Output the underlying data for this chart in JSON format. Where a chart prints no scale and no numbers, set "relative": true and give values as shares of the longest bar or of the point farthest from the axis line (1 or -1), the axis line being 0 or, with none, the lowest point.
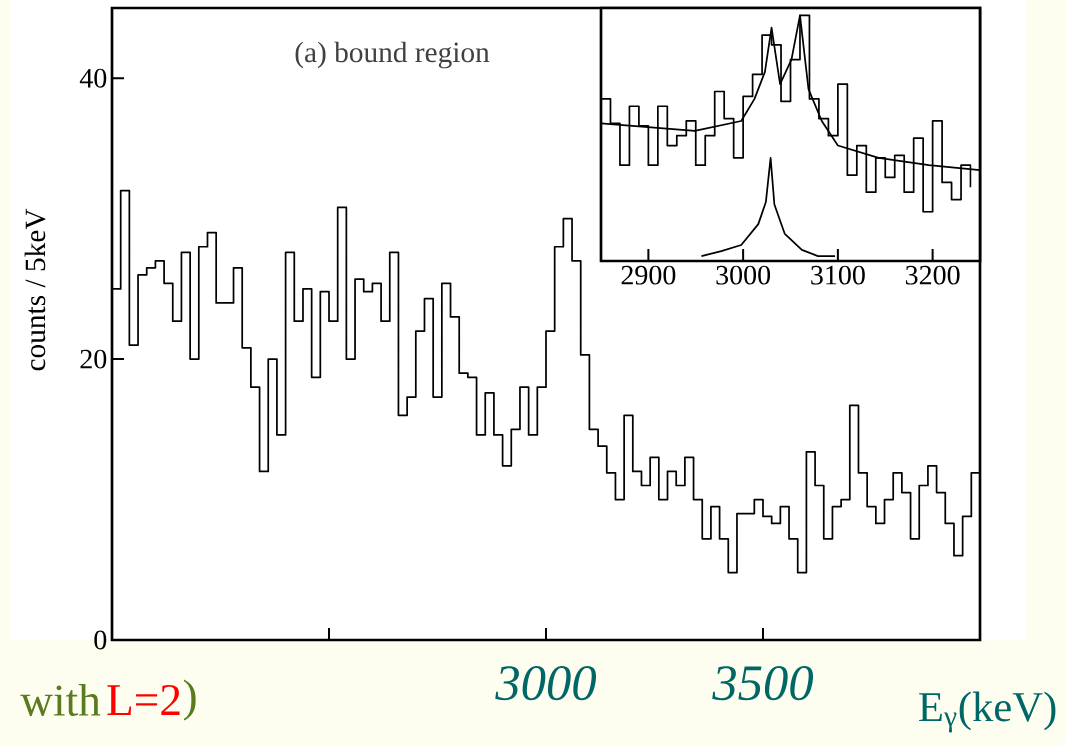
{
  "chart_data": [
    {
      "type": "histogram",
      "xlabel": "E$_{γ}$(keV)",
      "ylabel": "counts / 5keV",
      "color": "#000000",
      "annotations": [
        "(a) bound region",
        "with",
        "L=2",
        ")"
      ],
      "bins": [
        2000,
        2020,
        2040,
        2060,
        2080,
        2100,
        2120,
        2140,
        2160,
        2180,
        2200,
        2220,
        2240,
        2260,
        2280,
        2300,
        2320,
        2340,
        2360,
        2380,
        2400,
        2420,
        2440,
        2460,
        2480,
        2500,
        2520,
        2540,
        2560,
        2580,
        2600,
        2620,
        2640,
        2660,
        2680,
        2700,
        2720,
        2740,
        2760,
        2780,
        2800,
        2820,
        2840,
        2860,
        2880,
        2900,
        2920,
        2940,
        2960,
        2980,
        3000,
        3020,
        3040,
        3060,
        3080,
        3100,
        3120,
        3140,
        3160,
        3180,
        3200,
        3220,
        3240,
        3260,
        3280,
        3300,
        3320,
        3340,
        3360,
        3380,
        3400,
        3420,
        3440,
        3460,
        3480,
        3500,
        3520,
        3540,
        3560,
        3580,
        3600,
        3620,
        3640,
        3660,
        3680,
        3700,
        3720,
        3740,
        3760,
        3780,
        3800,
        3820,
        3840,
        3860,
        3880,
        3900,
        3920,
        3940,
        3960,
        3980,
        4000
      ],
      "values": [
        25,
        32,
        21,
        26,
        26.5,
        27,
        25.4,
        22.7,
        27.6,
        20,
        28,
        29,
        24,
        24,
        26.5,
        20.8,
        18,
        12,
        20,
        14.6,
        27.6,
        22.7,
        25,
        18.7,
        24.8,
        22.7,
        30.8,
        20,
        25.7,
        24.8,
        25.4,
        22.7,
        27.6,
        16,
        17.3,
        22,
        24.3,
        17.3,
        25.4,
        23,
        19,
        18.7,
        14.6,
        17.6,
        14.6,
        12.4,
        15,
        18,
        14.6,
        18,
        22,
        28,
        30,
        27,
        20.3,
        15,
        13.8,
        11.9,
        10,
        16,
        12,
        11,
        13,
        10,
        12,
        11,
        13,
        10,
        7.2,
        9.5,
        7.2,
        4.8,
        9,
        9,
        10,
        8.8,
        8.3,
        9.5,
        7.2,
        4.8,
        13.4,
        11,
        7.2,
        9.5,
        10,
        16.7,
        11.9,
        9.5,
        8.3,
        10,
        11.9,
        10.5,
        7.2,
        11,
        12.4,
        10.5,
        8.3,
        6,
        8.8,
        11.9
      ],
      "xlim": [
        2000,
        4000
      ],
      "ylim": [
        0,
        45
      ],
      "xticks": [
        {
          "value": 2500,
          "label": null
        },
        3000,
        3500
      ],
      "yticks": [
        0,
        20,
        40
      ]
    },
    {
      "type": "line",
      "relative": true,
      "tick_labels": "x",
      "series": [
        {
          "type": "step",
          "color": "#000000",
          "x": [
            2850,
            2860,
            2870,
            2880,
            2890,
            2900,
            2910,
            2920,
            2930,
            2940,
            2950,
            2960,
            2970,
            2980,
            2990,
            3000,
            3010,
            3020,
            3030,
            3040,
            3050,
            3060,
            3070,
            3080,
            3090,
            3100,
            3110,
            3120,
            3130,
            3140,
            3150,
            3160,
            3170,
            3180,
            3190,
            3200,
            3210,
            3220,
            3230,
            3240
          ],
          "values": [
            0.66,
            0.56,
            0.39,
            0.63,
            0.55,
            0.39,
            0.63,
            0.47,
            0.51,
            0.57,
            0.39,
            0.51,
            0.69,
            0.58,
            0.42,
            0.67,
            0.76,
            0.92,
            0.88,
            0.65,
            0.82,
            1.0,
            0.66,
            0.58,
            0.51,
            0.72,
            0.35,
            0.47,
            0.28,
            0.42,
            0.34,
            0.43,
            0.28,
            0.5,
            0.2,
            0.57,
            0.32,
            0.25,
            0.39,
            0.3
          ]
        },
        {
          "type": "line",
          "color": "#000000",
          "x": [
            2850,
            2949,
            2998,
            3012,
            3023,
            3030,
            3039,
            3051,
            3060,
            3069,
            3083,
            3100,
            3143,
            3196,
            3250
          ],
          "values": [
            0.56,
            0.53,
            0.57,
            0.66,
            0.77,
            0.95,
            0.72,
            0.82,
            1.0,
            0.7,
            0.57,
            0.47,
            0.42,
            0.39,
            0.37
          ]
        },
        {
          "type": "line",
          "color": "#000000",
          "x": [
            2956,
            2977,
            2998,
            3016,
            3024,
            3029,
            3033,
            3044,
            3062,
            3079,
            3097
          ],
          "values": [
            0.02,
            0.04,
            0.065,
            0.15,
            0.24,
            0.42,
            0.23,
            0.11,
            0.045,
            0.02,
            0.02
          ]
        }
      ],
      "xlim": [
        2850,
        3250
      ],
      "xticks": [
        2900,
        3000,
        3100,
        3200
      ]
    }
  ]
}
